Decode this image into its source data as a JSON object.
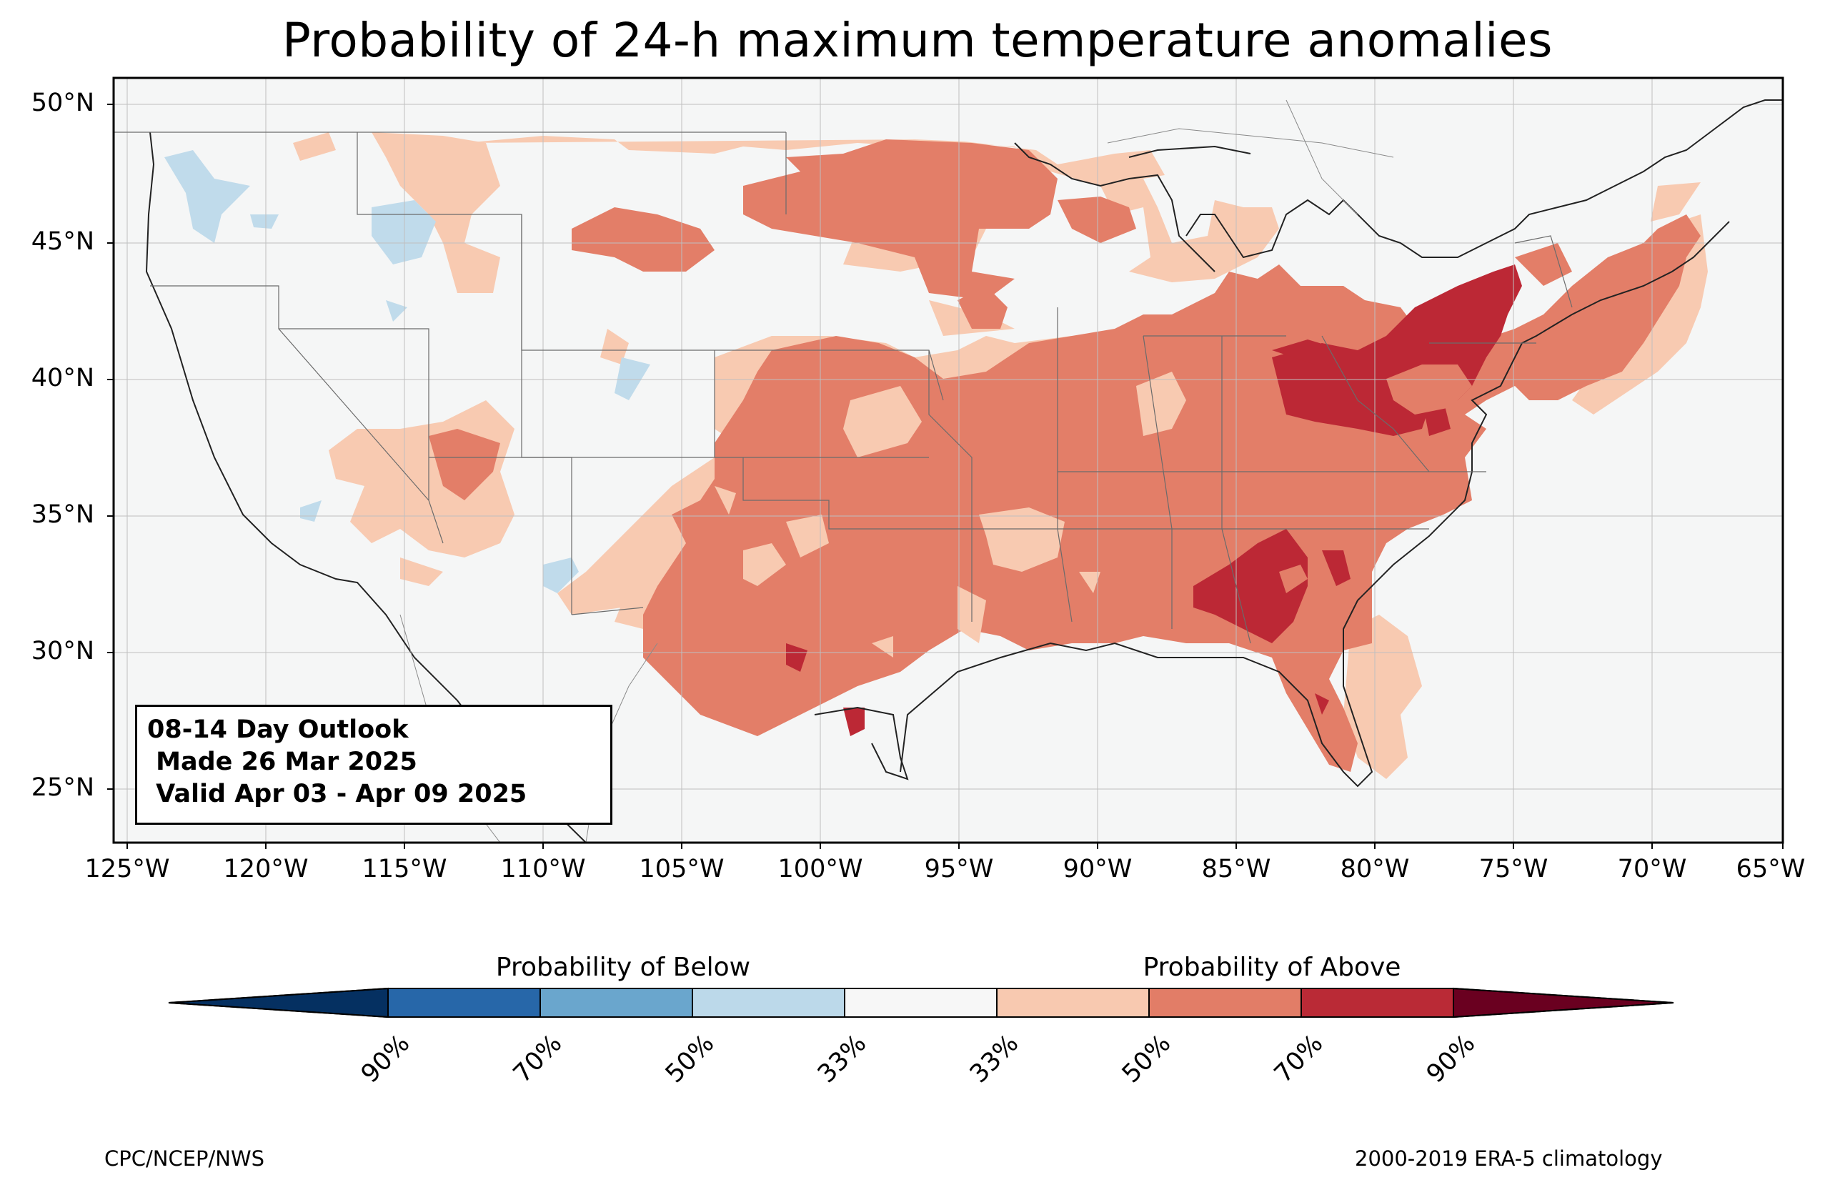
{
  "title": "Probability of 24-h maximum temperature anomalies",
  "map": {
    "lat_labels": [
      "50°N",
      "45°N",
      "40°N",
      "35°N",
      "30°N",
      "25°N"
    ],
    "lon_labels": [
      "125°W",
      "120°W",
      "115°W",
      "110°W",
      "105°W",
      "100°W",
      "95°W",
      "90°W",
      "85°W",
      "80°W",
      "75°W",
      "70°W",
      "65°W"
    ],
    "extent": {
      "lon": [
        -125.5,
        -65
      ],
      "lat": [
        23,
        51
      ]
    },
    "colors": {
      "background": "#f5f6f6",
      "below_33_50": "#c0dbeb",
      "above_33_50": "#f8cab1",
      "above_50_70": "#e37e68",
      "above_70_90": "#bc2835"
    }
  },
  "outlook_box": {
    "line1": "08-14 Day Outlook",
    "line2": " Made 26 Mar 2025",
    "line3": " Valid Apr 03 - Apr 09 2025"
  },
  "colorbar": {
    "below_heading": "Probability of Below",
    "above_heading": "Probability of Above",
    "bins": [
      {
        "color": "#053061"
      },
      {
        "color": "#2767a9"
      },
      {
        "color": "#6aa6cd"
      },
      {
        "color": "#bcd9ea"
      },
      {
        "color": "#f7f7f7"
      },
      {
        "color": "#f8c9b0"
      },
      {
        "color": "#e27d67"
      },
      {
        "color": "#ba2a36"
      },
      {
        "color": "#6a0020"
      }
    ],
    "ticks": [
      "90%",
      "70%",
      "50%",
      "33%",
      "33%",
      "50%",
      "70%",
      "90%"
    ]
  },
  "credits": {
    "left": "CPC/NCEP/NWS",
    "right": "2000-2019 ERA-5 climatology"
  }
}
